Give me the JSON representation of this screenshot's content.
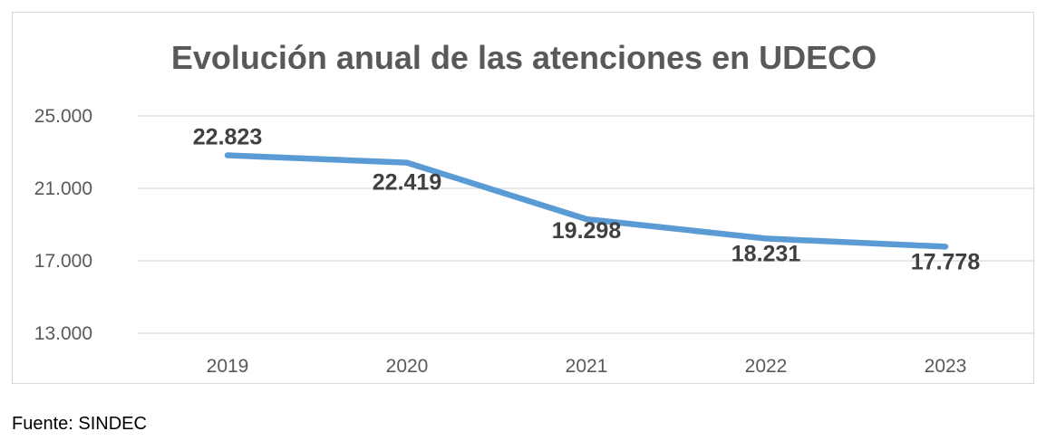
{
  "chart_data": {
    "type": "line",
    "title": "Evolución anual de las atenciones en UDECO",
    "categories": [
      "2019",
      "2020",
      "2021",
      "2022",
      "2023"
    ],
    "series": [
      {
        "values": [
          22823,
          22419,
          19298,
          18231,
          17778
        ],
        "data_labels": [
          "22.823",
          "22.419",
          "19.298",
          "18.231",
          "17.778"
        ],
        "color": "#5b9bd5"
      }
    ],
    "yticks": [
      13000,
      17000,
      21000,
      25000
    ],
    "ytick_labels": [
      "13.000",
      "17.000",
      "21.000",
      "25.000"
    ],
    "ylim": [
      13000,
      25000
    ],
    "grid": true,
    "legend": "none"
  },
  "source": "Fuente: SINDEC"
}
